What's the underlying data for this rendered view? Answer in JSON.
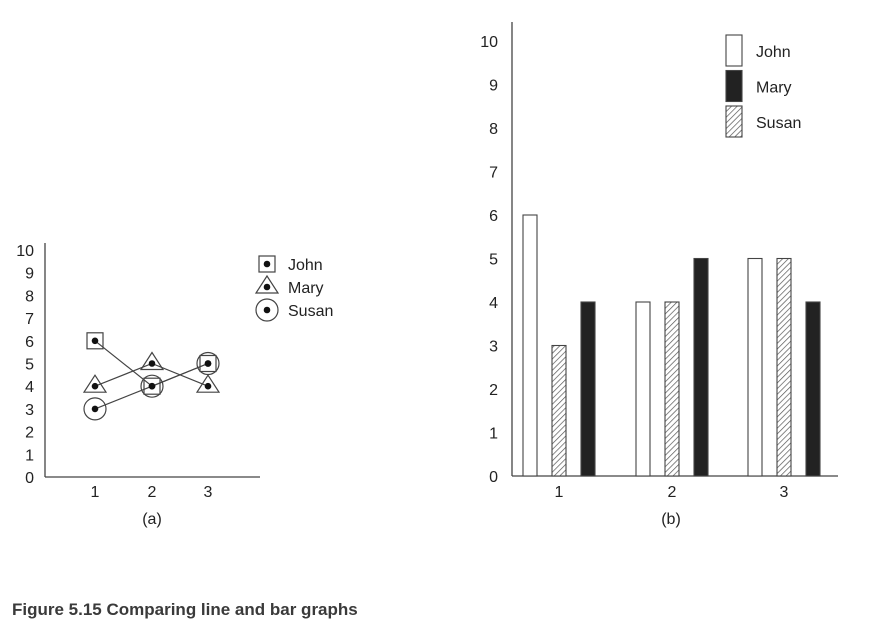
{
  "caption": "Figure 5.15 Comparing line and bar graphs",
  "chart_data": [
    {
      "type": "line",
      "label": "(a)",
      "categories": [
        "1",
        "2",
        "3"
      ],
      "yticks": [
        "0",
        "1",
        "2",
        "3",
        "4",
        "5",
        "6",
        "7",
        "8",
        "9",
        "10"
      ],
      "ylim": [
        0,
        10
      ],
      "legend_position": "top-right",
      "series": [
        {
          "name": "John",
          "marker": "square",
          "values": [
            6,
            4,
            5
          ]
        },
        {
          "name": "Mary",
          "marker": "triangle",
          "values": [
            4,
            5,
            4
          ]
        },
        {
          "name": "Susan",
          "marker": "circle",
          "values": [
            3,
            4,
            5
          ]
        }
      ]
    },
    {
      "type": "bar",
      "label": "(b)",
      "categories": [
        "1",
        "2",
        "3"
      ],
      "yticks": [
        "0",
        "1",
        "2",
        "3",
        "4",
        "5",
        "6",
        "7",
        "8",
        "9",
        "10"
      ],
      "ylim": [
        0,
        10
      ],
      "legend_position": "top-right",
      "bar_order": [
        "John",
        "Susan",
        "Mary"
      ],
      "series": [
        {
          "name": "John",
          "fill": "white",
          "values": [
            6,
            4,
            5
          ]
        },
        {
          "name": "Mary",
          "fill": "#222222",
          "values": [
            4,
            5,
            4
          ]
        },
        {
          "name": "Susan",
          "fill": "hatched",
          "values": [
            3,
            4,
            5
          ]
        }
      ]
    }
  ]
}
